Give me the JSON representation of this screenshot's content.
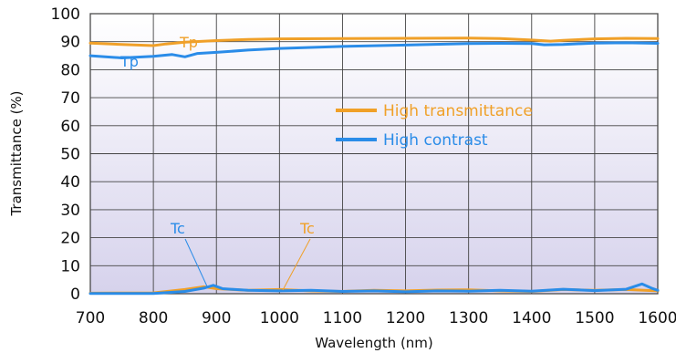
{
  "chart_data": {
    "type": "line",
    "xlabel": "Wavelength (nm)",
    "ylabel": "Transmittance (%)",
    "xlim": [
      700,
      1600
    ],
    "ylim": [
      0,
      100
    ],
    "x_ticks": [
      "700",
      "800",
      "900",
      "1000",
      "1100",
      "1200",
      "1300",
      "1400",
      "1500",
      "1600"
    ],
    "y_ticks": [
      "0",
      "10",
      "20",
      "30",
      "40",
      "50",
      "60",
      "70",
      "80",
      "90",
      "100"
    ],
    "grid": true,
    "legend_position": "center-right",
    "series": [
      {
        "name": "High transmittance",
        "color": "#F0A028",
        "curves": [
          {
            "label": "Tp",
            "x": [
              700,
              750,
              800,
              820,
              850,
              900,
              950,
              1000,
              1100,
              1200,
              1300,
              1350,
              1400,
              1430,
              1450,
              1500,
              1550,
              1600
            ],
            "y": [
              89.5,
              89.0,
              88.6,
              89.2,
              89.8,
              90.4,
              90.8,
              91.0,
              91.1,
              91.2,
              91.3,
              91.1,
              90.6,
              90.2,
              90.5,
              91.0,
              91.2,
              91.1
            ]
          },
          {
            "label": "Tc",
            "x": [
              700,
              800,
              850,
              880,
              900,
              950,
              1000,
              1050,
              1100,
              1150,
              1200,
              1250,
              1300,
              1350,
              1400,
              1450,
              1500,
              1550,
              1600
            ],
            "y": [
              0.2,
              0.3,
              1.5,
              2.5,
              1.8,
              1.2,
              1.5,
              1.0,
              0.8,
              1.2,
              1.0,
              1.3,
              1.4,
              1.0,
              0.8,
              1.5,
              1.2,
              1.5,
              1.0
            ]
          }
        ]
      },
      {
        "name": "High contrast",
        "color": "#2A8CE8",
        "curves": [
          {
            "label": "Tp",
            "x": [
              700,
              750,
              800,
              830,
              850,
              870,
              900,
              950,
              1000,
              1100,
              1200,
              1300,
              1350,
              1400,
              1420,
              1450,
              1500,
              1550,
              1600
            ],
            "y": [
              85.0,
              84.2,
              84.8,
              85.4,
              84.6,
              85.8,
              86.2,
              87.0,
              87.6,
              88.3,
              88.8,
              89.3,
              89.4,
              89.3,
              88.9,
              89.0,
              89.5,
              89.6,
              89.4
            ]
          },
          {
            "label": "Tc",
            "x": [
              700,
              800,
              850,
              880,
              895,
              910,
              950,
              1000,
              1050,
              1100,
              1150,
              1200,
              1250,
              1300,
              1350,
              1400,
              1450,
              1500,
              1550,
              1575,
              1590,
              1600
            ],
            "y": [
              0.1,
              0.1,
              0.8,
              2.0,
              3.0,
              1.8,
              1.2,
              1.0,
              1.2,
              0.8,
              1.0,
              0.7,
              1.0,
              0.9,
              1.2,
              0.9,
              1.6,
              1.1,
              1.6,
              3.5,
              2.0,
              1.2
            ]
          }
        ]
      }
    ],
    "annotations": [
      {
        "text": "Tp",
        "color": "#F0A028"
      },
      {
        "text": "Tp",
        "color": "#2A8CE8"
      },
      {
        "text": "Tc",
        "color": "#2A8CE8"
      },
      {
        "text": "Tc",
        "color": "#F0A028"
      }
    ]
  }
}
